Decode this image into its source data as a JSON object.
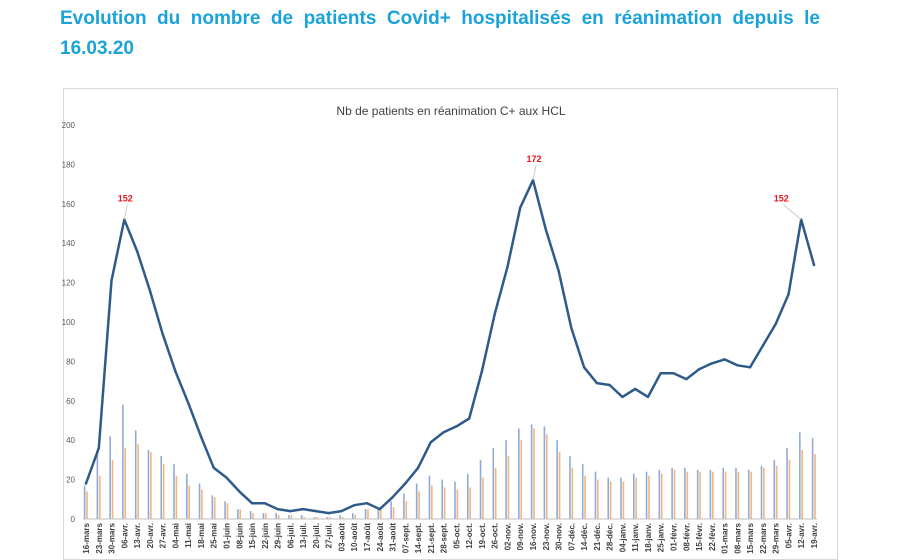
{
  "heading": "Evolution du nombre de patients Covid+ hospitalisés en réanimation depuis le 16.03.20",
  "chart_data": {
    "type": "line",
    "title": "Nb de patients en réanimation C+ aux HCL",
    "ylim": [
      0,
      200
    ],
    "yticks": [
      0,
      20,
      40,
      60,
      80,
      100,
      120,
      140,
      160,
      180,
      200
    ],
    "grid": false,
    "categories": [
      "16-mars",
      "23-mars",
      "30-mars",
      "06-avr.",
      "13-avr.",
      "20-avr.",
      "27-avr.",
      "04-mai",
      "11-mai",
      "18-mai",
      "25-mai",
      "01-juin",
      "08-juin",
      "15-juin",
      "22-juin",
      "29-juin",
      "06-juil.",
      "13-juil.",
      "20-juil.",
      "27-juil.",
      "03-août",
      "10-août",
      "17-août",
      "24-août",
      "31-août",
      "07-sept.",
      "14-sept.",
      "21-sept.",
      "28-sept.",
      "05-oct.",
      "12-oct.",
      "19-oct.",
      "26-oct.",
      "02-nov.",
      "09-nov.",
      "16-nov.",
      "23-nov.",
      "30-nov.",
      "07-déc.",
      "14-déc.",
      "21-déc.",
      "28-déc.",
      "04-janv.",
      "11-janv.",
      "18-janv.",
      "25-janv.",
      "01-févr.",
      "08-févr.",
      "15-févr.",
      "22-févr.",
      "01-mars",
      "08-mars",
      "15-mars",
      "22-mars",
      "29-mars",
      "05-avr.",
      "12-avr.",
      "19-avr."
    ],
    "series": [
      {
        "color": "#2e5b8a",
        "values": [
          18,
          36,
          121,
          152,
          136,
          116,
          94,
          75,
          59,
          42,
          26,
          21,
          14,
          8,
          8,
          5,
          4,
          5,
          4,
          3,
          4,
          7,
          8,
          5,
          11,
          18,
          26,
          39,
          44,
          47,
          51,
          75,
          104,
          128,
          158,
          172,
          147,
          126,
          97,
          77,
          69,
          68,
          62,
          66,
          62,
          74,
          74,
          71,
          76,
          79,
          81,
          78,
          77,
          88,
          99,
          114,
          152,
          129
        ]
      }
    ],
    "bar_series": [
      {
        "color": "#7d9bd1",
        "values": [
          17,
          35,
          42,
          58,
          45,
          35,
          32,
          28,
          23,
          18,
          12,
          9,
          5,
          4,
          3,
          3,
          2,
          2,
          1,
          1,
          2,
          3,
          5,
          6,
          9,
          13,
          18,
          22,
          20,
          19,
          23,
          30,
          36,
          40,
          46,
          48,
          47,
          40,
          32,
          28,
          24,
          21,
          21,
          23,
          24,
          25,
          26,
          26,
          25,
          25,
          26,
          26,
          25,
          27,
          30,
          36,
          44,
          41
        ]
      },
      {
        "color": "#f0a868",
        "values": [
          14,
          22,
          30,
          36,
          38,
          34,
          28,
          22,
          17,
          15,
          11,
          8,
          5,
          3,
          3,
          2,
          2,
          1,
          1,
          1,
          1,
          2,
          5,
          6,
          6,
          9,
          14,
          17,
          16,
          15,
          16,
          21,
          26,
          32,
          40,
          46,
          43,
          34,
          26,
          22,
          20,
          19,
          19,
          21,
          22,
          23,
          25,
          24,
          24,
          24,
          24,
          24,
          24,
          26,
          27,
          30,
          35,
          33
        ]
      }
    ],
    "annotations": [
      {
        "index": 3,
        "label": "152"
      },
      {
        "index": 35,
        "label": "172"
      },
      {
        "index": 56,
        "label": "152"
      }
    ]
  }
}
